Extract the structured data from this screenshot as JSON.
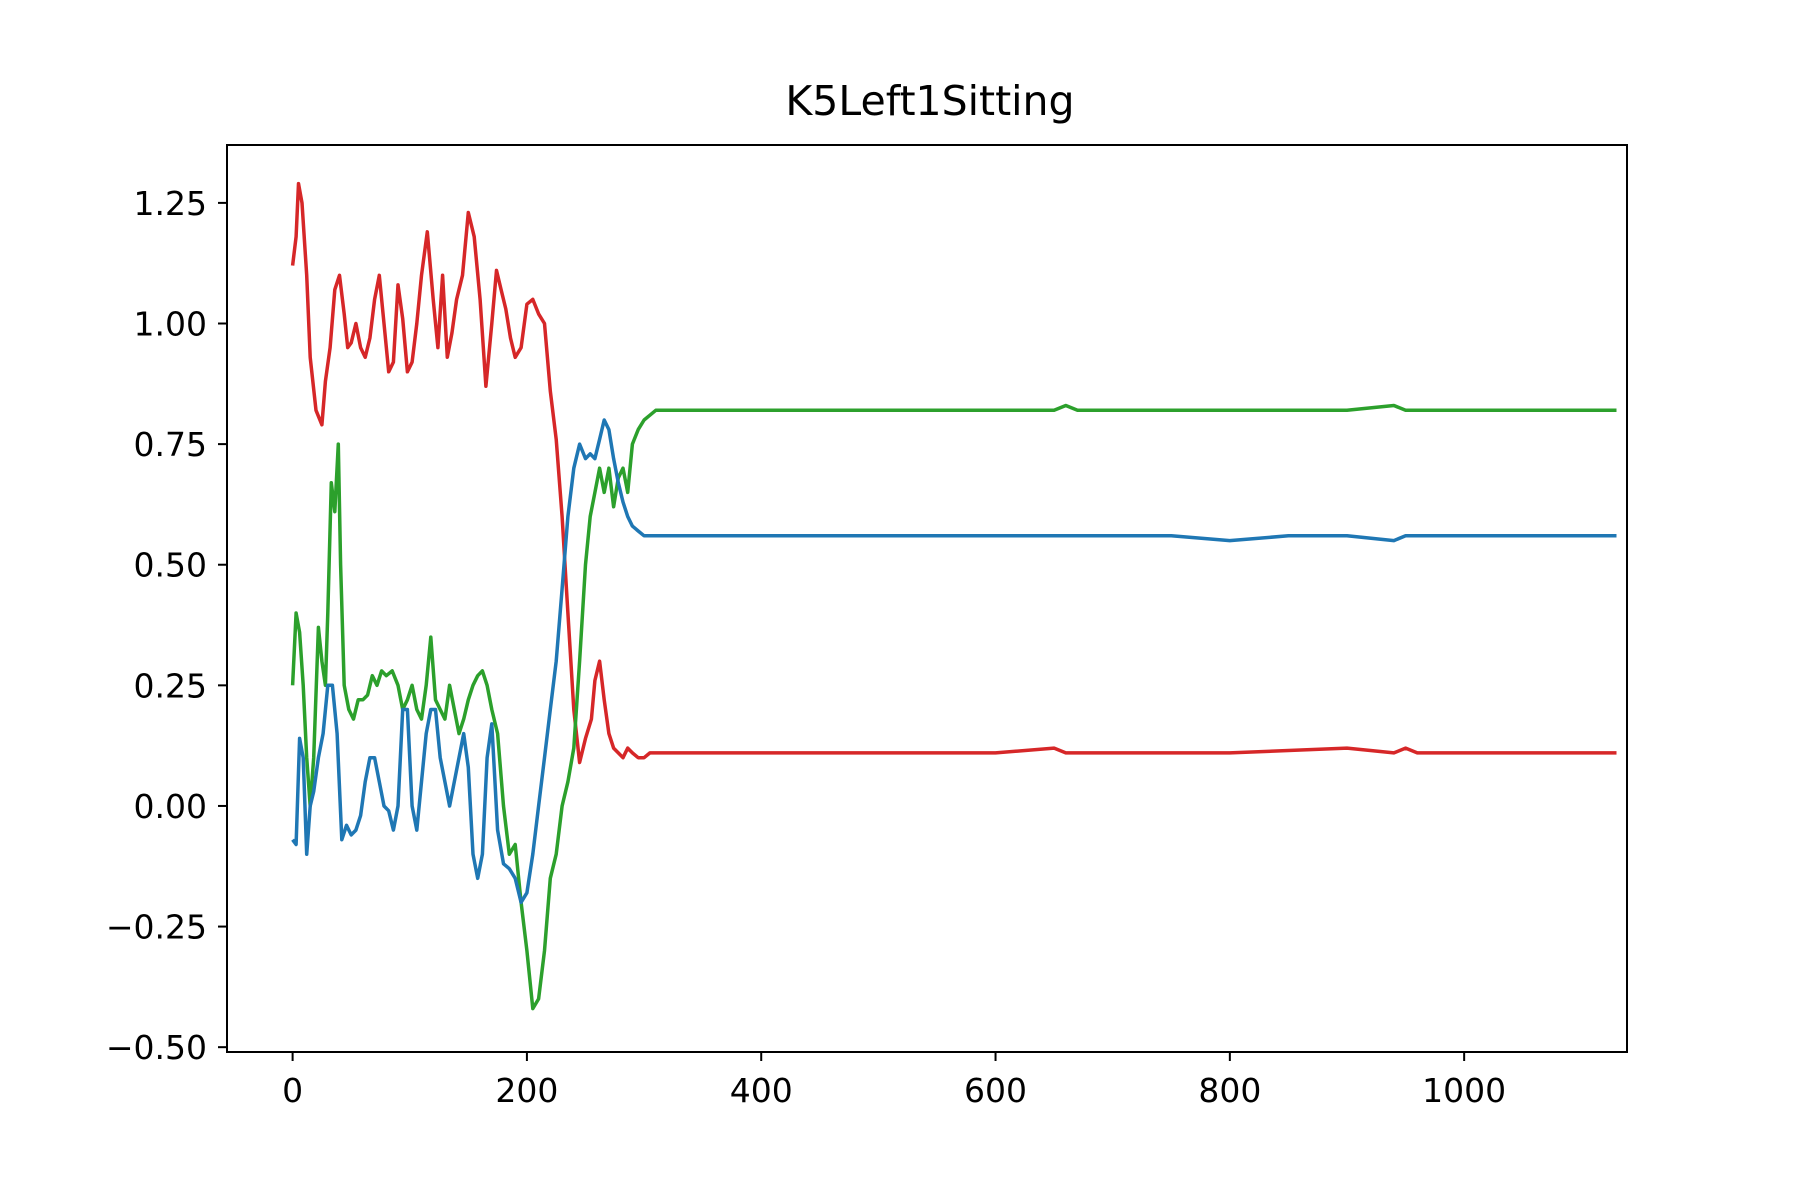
{
  "chart_data": {
    "type": "line",
    "title": "K5Left1Sitting",
    "xlabel": "",
    "ylabel": "",
    "xlim": [
      -56,
      1139
    ],
    "ylim": [
      -0.51,
      1.37
    ],
    "x_ticks": [
      0,
      200,
      400,
      600,
      800,
      1000
    ],
    "x_tick_labels": [
      "0",
      "200",
      "400",
      "600",
      "800",
      "1000"
    ],
    "y_ticks": [
      -0.5,
      -0.25,
      0.0,
      0.25,
      0.5,
      0.75,
      1.0,
      1.25
    ],
    "y_tick_labels": [
      "−0.50",
      "−0.25",
      "0.00",
      "0.25",
      "0.50",
      "0.75",
      "1.00",
      "1.25"
    ],
    "grid": false,
    "legend": "none",
    "series": [
      {
        "color": "#d62728",
        "x": [
          0,
          3,
          5,
          8,
          12,
          15,
          20,
          25,
          28,
          32,
          36,
          40,
          44,
          47,
          50,
          54,
          58,
          62,
          66,
          70,
          74,
          78,
          82,
          86,
          90,
          94,
          98,
          102,
          106,
          110,
          115,
          120,
          124,
          128,
          132,
          136,
          140,
          145,
          150,
          155,
          160,
          165,
          170,
          174,
          178,
          182,
          186,
          190,
          195,
          200,
          205,
          210,
          215,
          220,
          225,
          230,
          235,
          240,
          245,
          250,
          255,
          258,
          262,
          266,
          270,
          274,
          278,
          282,
          286,
          290,
          295,
          300,
          305,
          310,
          315,
          320,
          330,
          340,
          360,
          400,
          450,
          500,
          550,
          600,
          650,
          660,
          670,
          700,
          800,
          900,
          940,
          950,
          960,
          1000,
          1050,
          1100,
          1130
        ],
        "y": [
          1.12,
          1.18,
          1.29,
          1.25,
          1.1,
          0.93,
          0.82,
          0.79,
          0.88,
          0.95,
          1.07,
          1.1,
          1.02,
          0.95,
          0.96,
          1.0,
          0.95,
          0.93,
          0.97,
          1.05,
          1.1,
          1.0,
          0.9,
          0.92,
          1.08,
          1.01,
          0.9,
          0.92,
          1.0,
          1.1,
          1.19,
          1.05,
          0.95,
          1.1,
          0.93,
          0.98,
          1.05,
          1.1,
          1.23,
          1.18,
          1.05,
          0.87,
          1.0,
          1.11,
          1.07,
          1.03,
          0.97,
          0.93,
          0.95,
          1.04,
          1.05,
          1.02,
          1.0,
          0.86,
          0.76,
          0.6,
          0.4,
          0.2,
          0.09,
          0.14,
          0.18,
          0.26,
          0.3,
          0.22,
          0.15,
          0.12,
          0.11,
          0.1,
          0.12,
          0.11,
          0.1,
          0.1,
          0.11,
          0.11,
          0.11,
          0.11,
          0.11,
          0.11,
          0.11,
          0.11,
          0.11,
          0.11,
          0.11,
          0.11,
          0.12,
          0.11,
          0.11,
          0.11,
          0.11,
          0.12,
          0.11,
          0.12,
          0.11,
          0.11,
          0.11,
          0.11,
          0.11
        ]
      },
      {
        "color": "#2ca02c",
        "x": [
          0,
          3,
          6,
          9,
          12,
          15,
          18,
          22,
          25,
          28,
          30,
          33,
          36,
          39,
          41,
          44,
          48,
          52,
          56,
          60,
          64,
          68,
          72,
          76,
          80,
          85,
          90,
          94,
          98,
          102,
          106,
          110,
          114,
          118,
          122,
          126,
          130,
          134,
          138,
          142,
          146,
          150,
          154,
          158,
          162,
          166,
          170,
          175,
          180,
          185,
          190,
          195,
          200,
          205,
          210,
          215,
          220,
          225,
          230,
          235,
          240,
          245,
          250,
          254,
          258,
          262,
          266,
          270,
          274,
          278,
          282,
          286,
          290,
          295,
          300,
          305,
          310,
          315,
          320,
          330,
          350,
          400,
          450,
          500,
          550,
          600,
          650,
          660,
          670,
          700,
          800,
          900,
          940,
          950,
          1000,
          1100,
          1130
        ],
        "y": [
          0.25,
          0.4,
          0.36,
          0.25,
          0.1,
          0.0,
          0.1,
          0.37,
          0.3,
          0.25,
          0.4,
          0.67,
          0.61,
          0.75,
          0.5,
          0.25,
          0.2,
          0.18,
          0.22,
          0.22,
          0.23,
          0.27,
          0.25,
          0.28,
          0.27,
          0.28,
          0.25,
          0.2,
          0.22,
          0.25,
          0.2,
          0.18,
          0.25,
          0.35,
          0.22,
          0.2,
          0.18,
          0.25,
          0.2,
          0.15,
          0.18,
          0.22,
          0.25,
          0.27,
          0.28,
          0.25,
          0.2,
          0.15,
          0.0,
          -0.1,
          -0.08,
          -0.2,
          -0.3,
          -0.42,
          -0.4,
          -0.3,
          -0.15,
          -0.1,
          0.0,
          0.05,
          0.12,
          0.3,
          0.5,
          0.6,
          0.65,
          0.7,
          0.65,
          0.7,
          0.62,
          0.68,
          0.7,
          0.65,
          0.75,
          0.78,
          0.8,
          0.81,
          0.82,
          0.82,
          0.82,
          0.82,
          0.82,
          0.82,
          0.82,
          0.82,
          0.82,
          0.82,
          0.82,
          0.83,
          0.82,
          0.82,
          0.82,
          0.82,
          0.83,
          0.82,
          0.82,
          0.82,
          0.82
        ]
      },
      {
        "color": "#1f77b4",
        "x": [
          0,
          3,
          6,
          9,
          12,
          15,
          18,
          22,
          26,
          30,
          34,
          38,
          42,
          46,
          50,
          54,
          58,
          62,
          66,
          70,
          74,
          78,
          82,
          86,
          90,
          94,
          98,
          102,
          106,
          110,
          114,
          118,
          122,
          126,
          130,
          134,
          138,
          142,
          146,
          150,
          154,
          158,
          162,
          166,
          170,
          175,
          180,
          185,
          190,
          195,
          200,
          205,
          210,
          215,
          220,
          225,
          230,
          235,
          240,
          245,
          250,
          254,
          258,
          262,
          266,
          270,
          274,
          278,
          282,
          286,
          290,
          295,
          300,
          305,
          310,
          315,
          320,
          330,
          350,
          400,
          450,
          500,
          550,
          600,
          650,
          700,
          750,
          800,
          850,
          900,
          940,
          950,
          960,
          1000,
          1100,
          1130
        ],
        "y": [
          -0.07,
          -0.08,
          0.14,
          0.1,
          -0.1,
          0.0,
          0.03,
          0.1,
          0.15,
          0.25,
          0.25,
          0.15,
          -0.07,
          -0.04,
          -0.06,
          -0.05,
          -0.02,
          0.05,
          0.1,
          0.1,
          0.05,
          0.0,
          -0.01,
          -0.05,
          0.0,
          0.2,
          0.2,
          0.0,
          -0.05,
          0.05,
          0.15,
          0.2,
          0.2,
          0.1,
          0.05,
          0.0,
          0.05,
          0.1,
          0.15,
          0.08,
          -0.1,
          -0.15,
          -0.1,
          0.1,
          0.17,
          -0.05,
          -0.12,
          -0.13,
          -0.15,
          -0.2,
          -0.18,
          -0.1,
          0.0,
          0.1,
          0.2,
          0.3,
          0.45,
          0.6,
          0.7,
          0.75,
          0.72,
          0.73,
          0.72,
          0.76,
          0.8,
          0.78,
          0.72,
          0.67,
          0.63,
          0.6,
          0.58,
          0.57,
          0.56,
          0.56,
          0.56,
          0.56,
          0.56,
          0.56,
          0.56,
          0.56,
          0.56,
          0.56,
          0.56,
          0.56,
          0.56,
          0.56,
          0.56,
          0.55,
          0.56,
          0.56,
          0.55,
          0.56,
          0.56,
          0.56,
          0.56,
          0.56
        ]
      }
    ]
  }
}
